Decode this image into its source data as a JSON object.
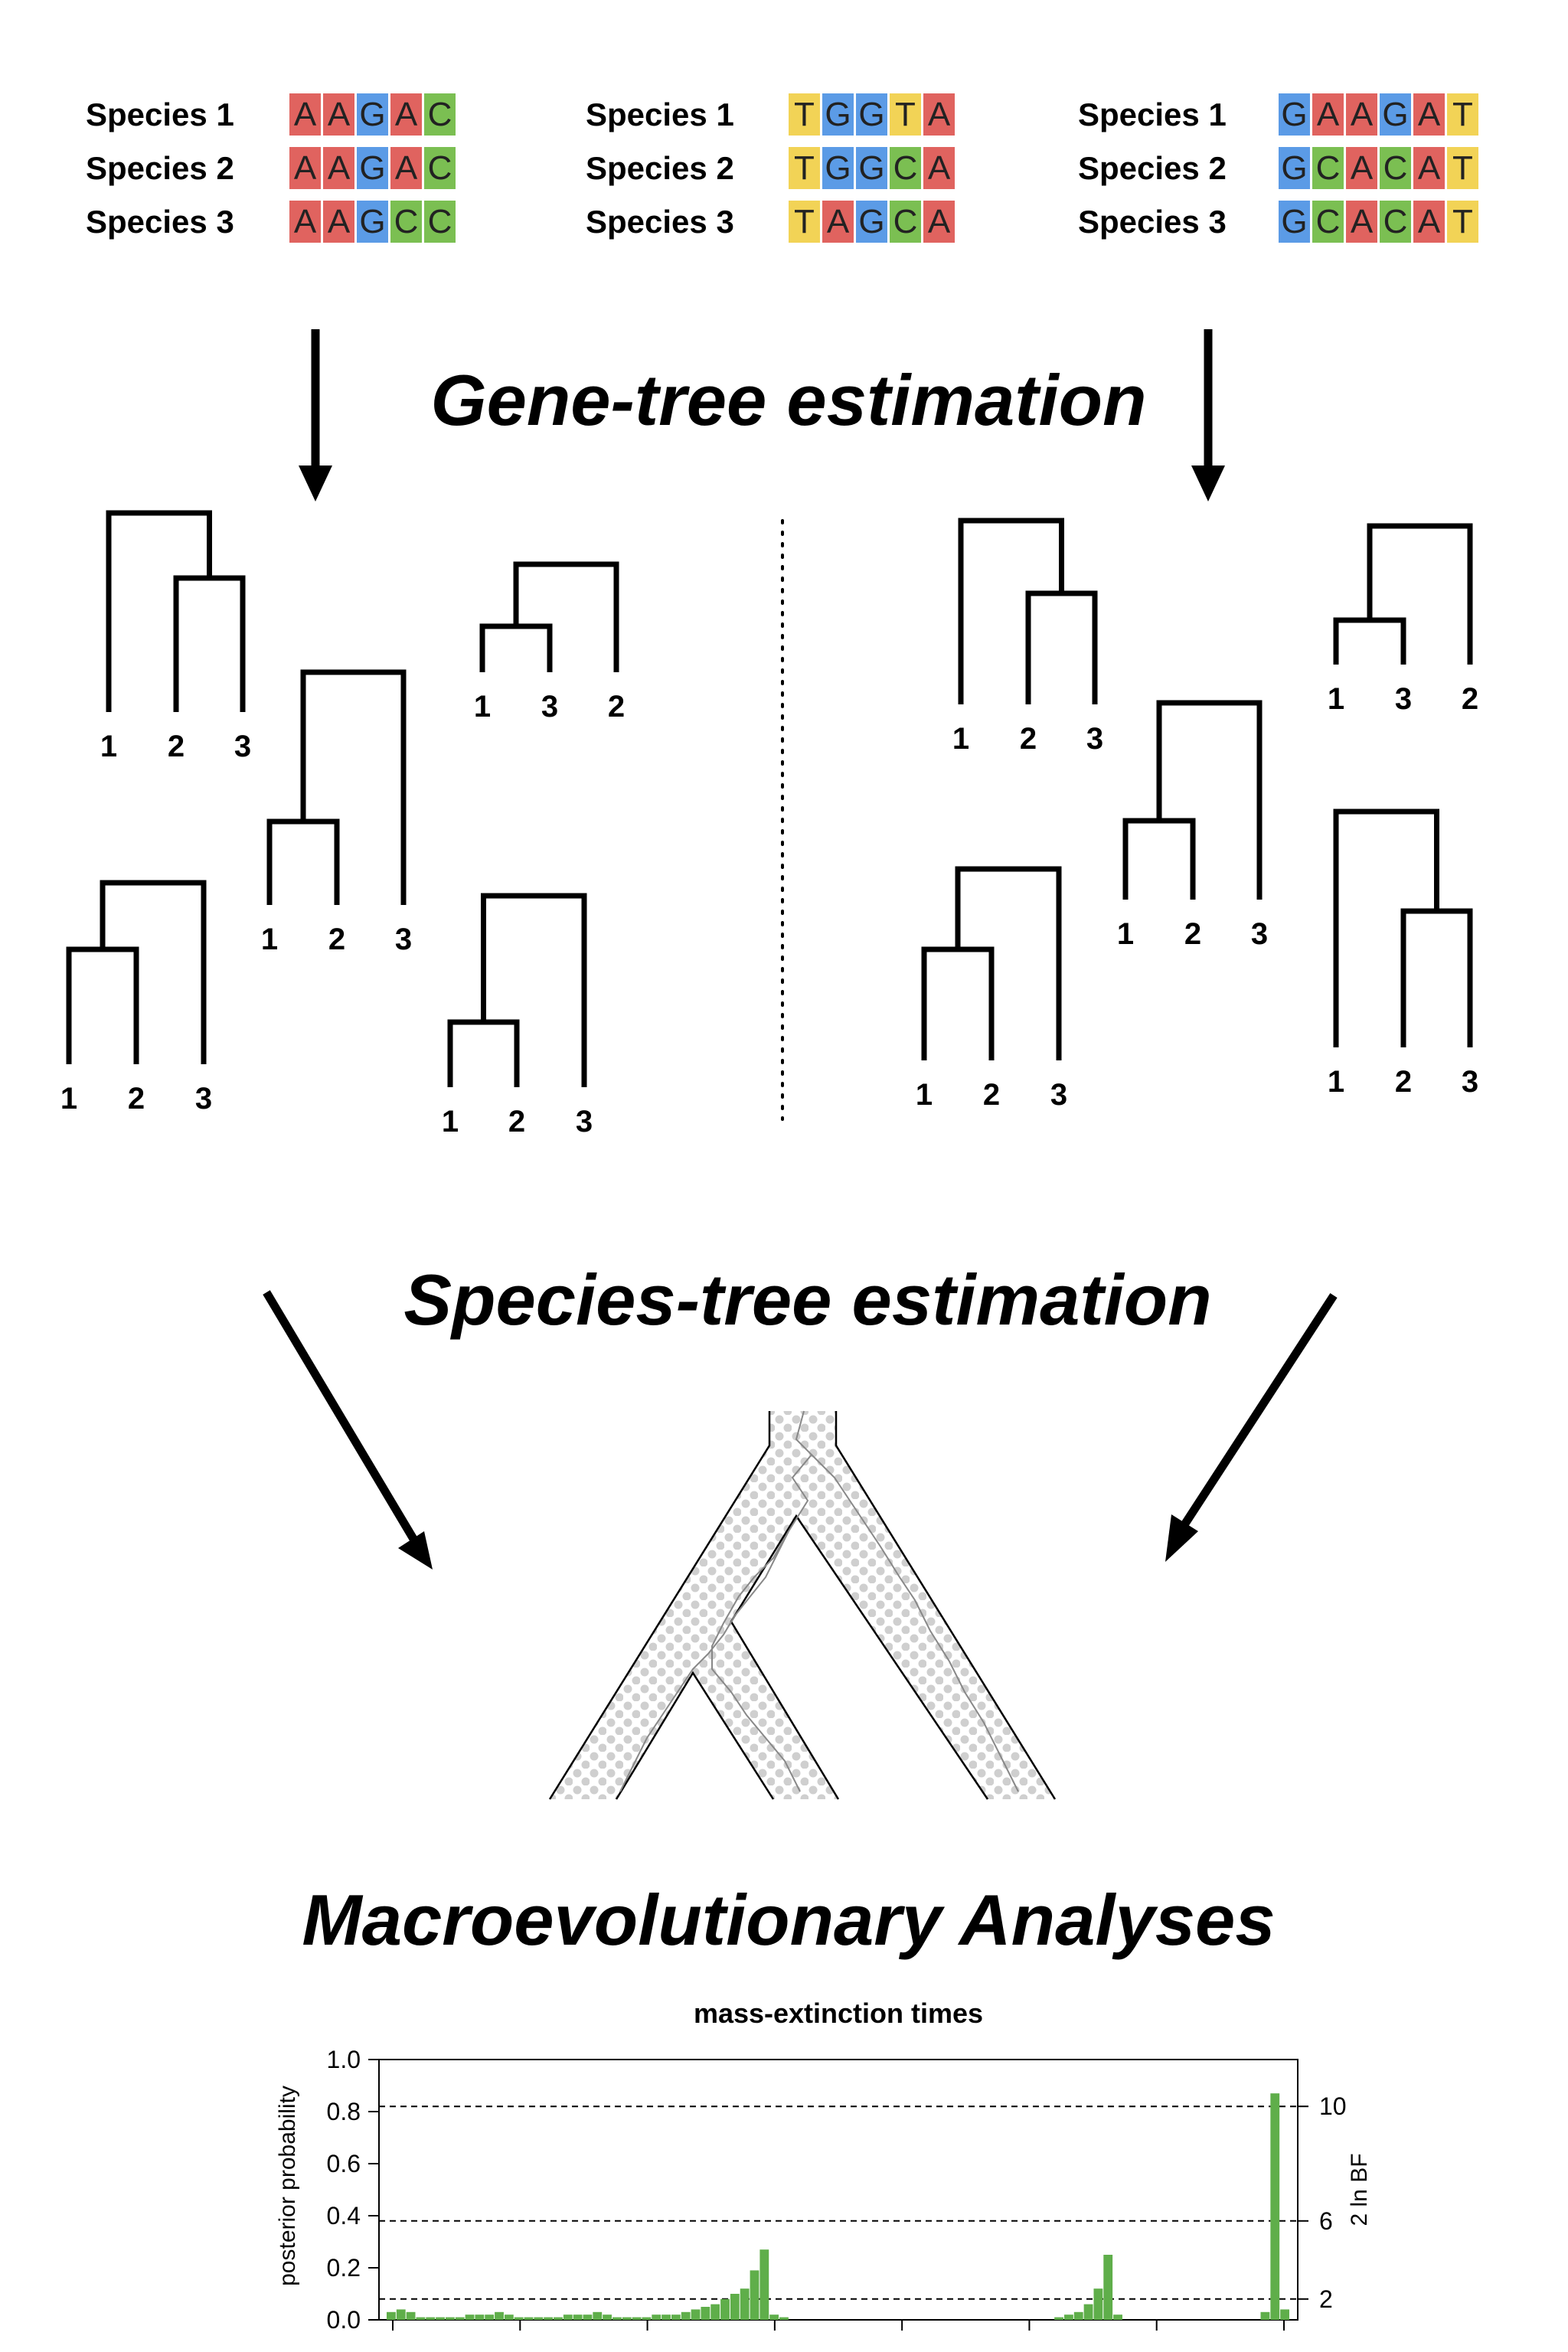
{
  "colors": {
    "A": "#e0635f",
    "C": "#7bbf52",
    "G": "#5b9be6",
    "T": "#f2d356",
    "bar": "#5fae4a"
  },
  "alignments": [
    {
      "rows": [
        {
          "species": "Species 1",
          "seq": [
            "A",
            "A",
            "G",
            "A",
            "C"
          ]
        },
        {
          "species": "Species 2",
          "seq": [
            "A",
            "A",
            "G",
            "A",
            "C"
          ]
        },
        {
          "species": "Species 3",
          "seq": [
            "A",
            "A",
            "G",
            "C",
            "C"
          ]
        }
      ]
    },
    {
      "rows": [
        {
          "species": "Species 1",
          "seq": [
            "T",
            "G",
            "G",
            "T",
            "A"
          ]
        },
        {
          "species": "Species 2",
          "seq": [
            "T",
            "G",
            "G",
            "C",
            "A"
          ]
        },
        {
          "species": "Species 3",
          "seq": [
            "T",
            "A",
            "G",
            "C",
            "A"
          ]
        }
      ]
    },
    {
      "rows": [
        {
          "species": "Species 1",
          "seq": [
            "G",
            "A",
            "A",
            "G",
            "A",
            "T"
          ]
        },
        {
          "species": "Species 2",
          "seq": [
            "G",
            "C",
            "A",
            "C",
            "A",
            "T"
          ]
        },
        {
          "species": "Species 3",
          "seq": [
            "G",
            "C",
            "A",
            "C",
            "A",
            "T"
          ]
        }
      ]
    }
  ],
  "headings": {
    "gene_tree": "Gene-tree estimation",
    "species_tree": "Species-tree estimation",
    "macro": "Macroevolutionary Analyses"
  },
  "gene_trees_left": [
    {
      "topology": "1 (2 3)",
      "tips": [
        "1",
        "2",
        "3"
      ]
    },
    {
      "topology": "(1 3) 2",
      "tips": [
        "1",
        "3",
        "2"
      ]
    },
    {
      "topology": "(1 2) 3",
      "tips": [
        "1",
        "2",
        "3"
      ]
    },
    {
      "topology": "(1 2) 3",
      "tips": [
        "1",
        "2",
        "3"
      ]
    },
    {
      "topology": "(1 2) 3",
      "tips": [
        "1",
        "2",
        "3"
      ]
    }
  ],
  "gene_trees_right": [
    {
      "topology": "1 (2 3)",
      "tips": [
        "1",
        "2",
        "3"
      ]
    },
    {
      "topology": "(1 3) 2",
      "tips": [
        "1",
        "3",
        "2"
      ]
    },
    {
      "topology": "(1 2) 3",
      "tips": [
        "1",
        "2",
        "3"
      ]
    },
    {
      "topology": "(1 2) 3",
      "tips": [
        "1",
        "2",
        "3"
      ]
    },
    {
      "topology": "1 (2 3)",
      "tips": [
        "1",
        "2",
        "3"
      ]
    }
  ],
  "chart_data": {
    "type": "bar",
    "title": "mass-extinction times",
    "ylabel": "posterior probability",
    "y2label": "2 ln BF",
    "ylim": [
      0,
      1.0
    ],
    "yticks": [
      "0.0",
      "0.2",
      "0.4",
      "0.6",
      "0.8",
      "1.0"
    ],
    "bf_lines": [
      {
        "label": "2",
        "y": 0.08
      },
      {
        "label": "6",
        "y": 0.38
      },
      {
        "label": "10",
        "y": 0.82
      }
    ],
    "x_tick_count": 8,
    "values": [
      0.03,
      0.04,
      0.03,
      0.01,
      0.01,
      0.01,
      0.01,
      0.01,
      0.02,
      0.02,
      0.02,
      0.03,
      0.02,
      0.01,
      0.01,
      0.01,
      0.01,
      0.01,
      0.02,
      0.02,
      0.02,
      0.03,
      0.02,
      0.01,
      0.01,
      0.01,
      0.01,
      0.02,
      0.02,
      0.02,
      0.03,
      0.04,
      0.05,
      0.06,
      0.08,
      0.1,
      0.12,
      0.19,
      0.27,
      0.02,
      0.01,
      0,
      0,
      0,
      0,
      0,
      0,
      0,
      0,
      0,
      0,
      0,
      0,
      0,
      0,
      0,
      0,
      0,
      0,
      0,
      0,
      0,
      0,
      0,
      0,
      0,
      0,
      0,
      0.01,
      0.02,
      0.03,
      0.06,
      0.12,
      0.25,
      0.02,
      0,
      0,
      0,
      0,
      0,
      0,
      0,
      0,
      0,
      0,
      0,
      0,
      0,
      0,
      0.03,
      0.87,
      0.04
    ]
  }
}
